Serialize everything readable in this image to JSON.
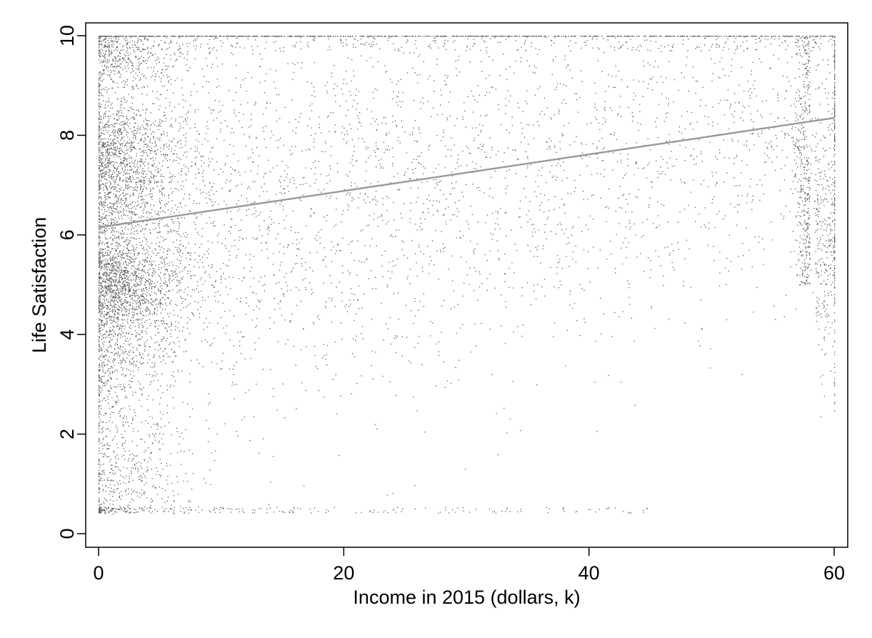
{
  "chart_data": {
    "type": "scatter",
    "title": "",
    "xlabel": "Income in 2015 (dollars, k)",
    "ylabel": "Life Satisfaction",
    "xlim": [
      -1.2,
      61.2
    ],
    "ylim": [
      -0.3,
      10.3
    ],
    "xticks": [
      0,
      20,
      40,
      60
    ],
    "yticks": [
      0,
      2,
      4,
      6,
      8,
      10
    ],
    "xtick_labels": [
      "0",
      "20",
      "40",
      "60"
    ],
    "ytick_labels": [
      "0",
      "2",
      "4",
      "6",
      "8",
      "10"
    ],
    "grid": false,
    "legend": "none",
    "point_color": "#5a5a5a",
    "fit_line_color": "#9a9a9a",
    "series": [
      {
        "kind": "points",
        "description_of_shape": "dense cloud; x range 0-60, y range 0.4-10; densest at low income (x<10) with bands near y=5, 7, 8, 9.5; sparse at low y for high income; vertical spikes at x=0 and x=60",
        "x_range": [
          0,
          60
        ],
        "y_range": [
          0.4,
          10
        ]
      },
      {
        "kind": "fit_line",
        "points": [
          [
            0,
            6.15
          ],
          [
            60,
            8.35
          ]
        ]
      }
    ]
  }
}
